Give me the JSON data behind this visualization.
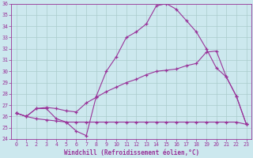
{
  "xlabel": "Windchill (Refroidissement éolien,°C)",
  "x": [
    0,
    1,
    2,
    3,
    4,
    5,
    6,
    7,
    8,
    9,
    10,
    11,
    12,
    13,
    14,
    15,
    16,
    17,
    18,
    19,
    20,
    21,
    22,
    23
  ],
  "line1": [
    26.3,
    26.0,
    26.7,
    26.7,
    25.8,
    25.5,
    24.7,
    24.3,
    27.8,
    30.0,
    31.3,
    33.0,
    33.5,
    34.2,
    35.8,
    36.0,
    35.5,
    34.5,
    33.5,
    32.0,
    30.3,
    29.5,
    27.8,
    25.3
  ],
  "line2": [
    26.3,
    26.0,
    26.7,
    26.8,
    26.7,
    26.5,
    26.4,
    27.2,
    27.7,
    28.2,
    28.6,
    29.0,
    29.3,
    29.7,
    30.0,
    30.1,
    30.2,
    30.5,
    30.7,
    31.7,
    31.8,
    29.5,
    27.8,
    25.3
  ],
  "line3": [
    26.3,
    26.0,
    25.8,
    25.7,
    25.6,
    25.5,
    25.5,
    25.5,
    25.5,
    25.5,
    25.5,
    25.5,
    25.5,
    25.5,
    25.5,
    25.5,
    25.5,
    25.5,
    25.5,
    25.5,
    25.5,
    25.5,
    25.5,
    25.3
  ],
  "line_color": "#993399",
  "bg_color": "#cce8ee",
  "grid_color": "#aacccc",
  "ylim_min": 24,
  "ylim_max": 36,
  "xlim_min": -0.5,
  "xlim_max": 23.5,
  "yticks": [
    24,
    25,
    26,
    27,
    28,
    29,
    30,
    31,
    32,
    33,
    34,
    35,
    36
  ],
  "xticks": [
    0,
    1,
    2,
    3,
    4,
    5,
    6,
    7,
    8,
    9,
    10,
    11,
    12,
    13,
    14,
    15,
    16,
    17,
    18,
    19,
    20,
    21,
    22,
    23
  ],
  "tick_fontsize": 4.8,
  "xlabel_fontsize": 5.5
}
